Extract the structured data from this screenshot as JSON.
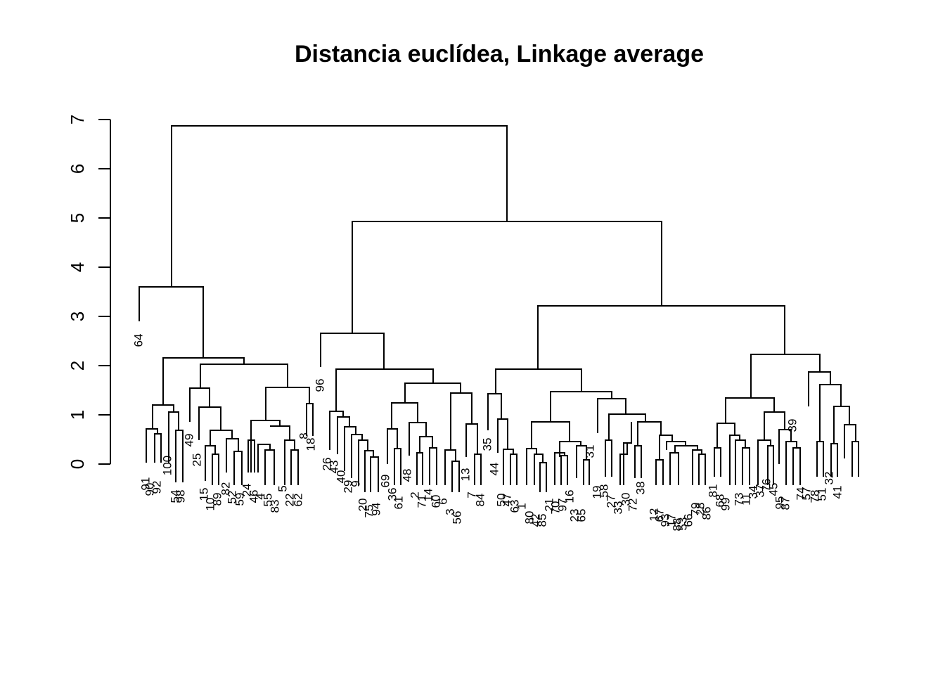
{
  "chart_data": {
    "type": "dendrogram",
    "title": "Distancia euclídea, Linkage average",
    "xlabel": "",
    "ylabel": "",
    "ylim": [
      0,
      7
    ],
    "yticks": [
      "0",
      "1",
      "2",
      "3",
      "4",
      "5",
      "6",
      "7"
    ],
    "line_color": "#000000",
    "leaf_order": [
      "64",
      "91",
      "90",
      "92",
      "100",
      "54",
      "98",
      "49",
      "25",
      "15",
      "10",
      "89",
      "82",
      "52",
      "59",
      "24",
      "46",
      "4",
      "55",
      "83",
      "5",
      "22",
      "62",
      "8",
      "18",
      "96",
      "26",
      "43",
      "40",
      "29",
      "9",
      "20",
      "75",
      "94",
      "69",
      "36",
      "61",
      "48",
      "2",
      "71",
      "14",
      "60",
      "6",
      "3",
      "56",
      "13",
      "7",
      "84",
      "35",
      "44",
      "50",
      "47",
      "63",
      "1",
      "80",
      "42",
      "85",
      "21",
      "70",
      "97",
      "16",
      "23",
      "65",
      "31",
      "19",
      "58",
      "27",
      "33",
      "30",
      "72",
      "38",
      "12",
      "67",
      "93",
      "17",
      "88",
      "53",
      "66",
      "79",
      "28",
      "86",
      "81",
      "68",
      "99",
      "73",
      "11",
      "34",
      "37",
      "76",
      "45",
      "95",
      "87",
      "39",
      "74",
      "57",
      "78",
      "51",
      "32",
      "41"
    ],
    "merge_heights": {
      "root": 6.85,
      "left_cluster": 3.58,
      "right_cluster": 4.92,
      "right_left": 2.64,
      "right_right": 3.22,
      "subcluster_a": 2.15,
      "subcluster_b": 2.02,
      "subcluster_c": 1.92,
      "subcluster_d": 1.92,
      "subcluster_e": 2.23
    }
  }
}
